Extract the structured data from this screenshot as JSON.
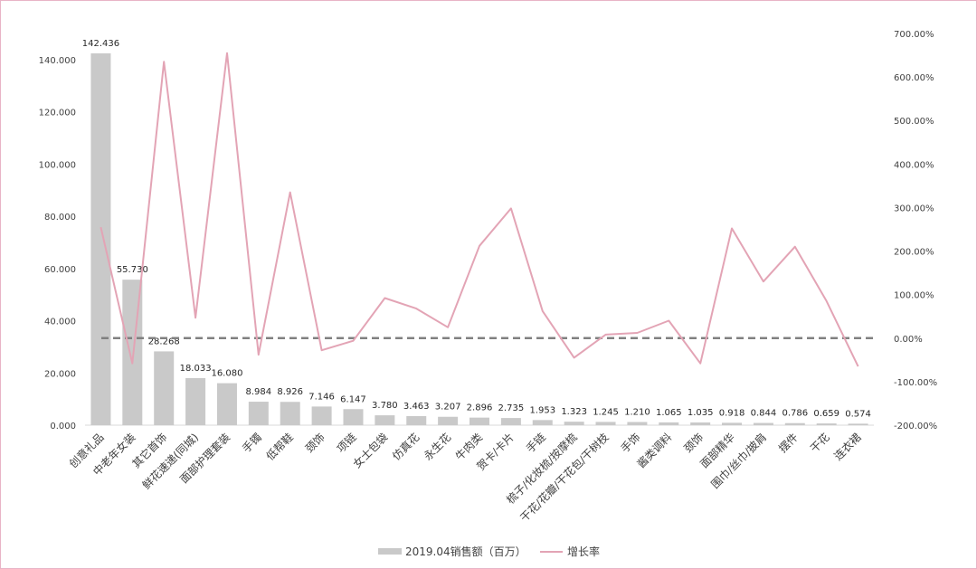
{
  "chart_data": {
    "type": "bar+line",
    "categories": [
      "创意礼品",
      "中老年女装",
      "其它首饰",
      "鲜花速递(同城)",
      "面部护理套装",
      "手镯",
      "低帮鞋",
      "颈饰",
      "项链",
      "女士包袋",
      "仿真花",
      "永生花",
      "牛肉类",
      "贺卡/卡片",
      "手链",
      "梳子/化妆梳/按摩梳",
      "干花/花瓣/干花包/干树枝",
      "手饰",
      "酱类调料",
      "颈饰",
      "面部精华",
      "围巾/丝巾/披肩",
      "摆件",
      "干花",
      "连衣裙"
    ],
    "series": [
      {
        "name": "2019.04销售额（百万）",
        "axis": "left",
        "type": "bar",
        "color": "#c9c9c9",
        "values": [
          142.436,
          55.73,
          28.268,
          18.033,
          16.08,
          8.984,
          8.926,
          7.146,
          6.147,
          3.78,
          3.463,
          3.207,
          2.896,
          2.735,
          1.953,
          1.323,
          1.245,
          1.21,
          1.065,
          1.035,
          0.918,
          0.844,
          0.786,
          0.659,
          0.574
        ],
        "labels": [
          "142.436",
          "55.730",
          "28.268",
          "18.033",
          "16.080",
          "8.984",
          "8.926",
          "7.146",
          "6.147",
          "3.780",
          "3.463",
          "3.207",
          "2.896",
          "2.735",
          "1.953",
          "1.323",
          "1.245",
          "1.210",
          "1.065",
          "1.035",
          "0.918",
          "0.844",
          "0.786",
          "0.659",
          "0.574"
        ]
      },
      {
        "name": "增长率",
        "axis": "right",
        "type": "line",
        "color": "#e3a4b5",
        "values": [
          255,
          -58,
          635,
          47,
          655,
          -38,
          335,
          -28,
          -6,
          92,
          68,
          25,
          212,
          298,
          62,
          -45,
          8,
          12,
          40,
          -58,
          252,
          130,
          210,
          85,
          -65
        ]
      }
    ],
    "y_left": {
      "min": 0,
      "max": 140,
      "ticks": [
        "0.000",
        "20.000",
        "40.000",
        "60.000",
        "80.000",
        "100.000",
        "120.000",
        "140.000"
      ]
    },
    "y_right": {
      "min": -200,
      "max": 700,
      "ticks": [
        "-200.00%",
        "-100.00%",
        "0.00%",
        "100.00%",
        "200.00%",
        "300.00%",
        "400.00%",
        "500.00%",
        "600.00%",
        "700.00%"
      ]
    },
    "reference_line": {
      "axis": "right",
      "value": 0,
      "style": "dashed",
      "color": "#808080"
    },
    "legend": {
      "position": "bottom"
    },
    "grid": false
  }
}
